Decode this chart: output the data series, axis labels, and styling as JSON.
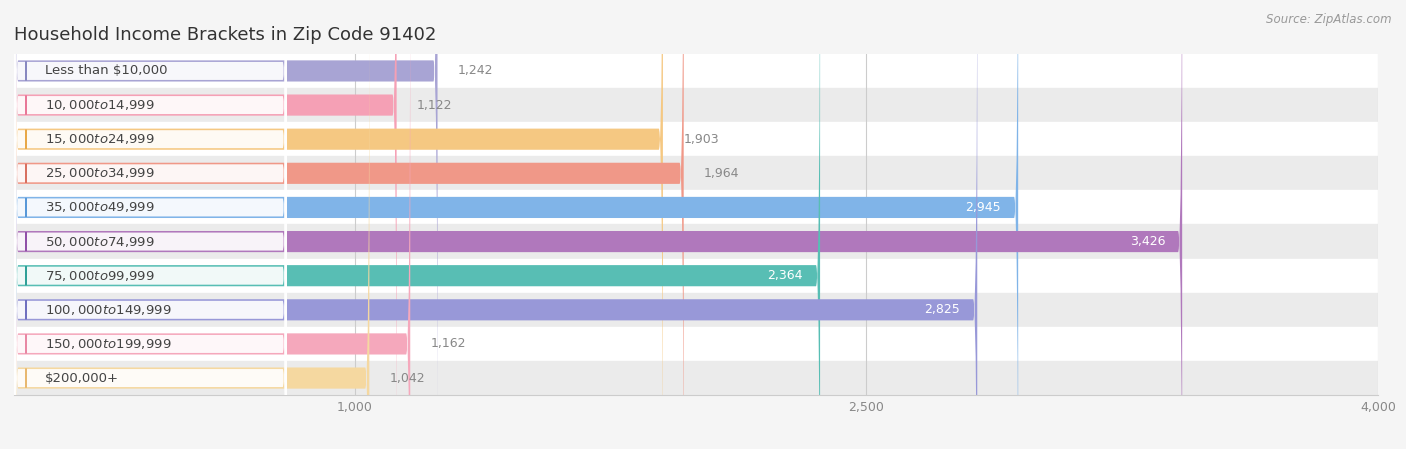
{
  "title": "Household Income Brackets in Zip Code 91402",
  "source": "Source: ZipAtlas.com",
  "categories": [
    "Less than $10,000",
    "$10,000 to $14,999",
    "$15,000 to $24,999",
    "$25,000 to $34,999",
    "$35,000 to $49,999",
    "$50,000 to $74,999",
    "$75,000 to $99,999",
    "$100,000 to $149,999",
    "$150,000 to $199,999",
    "$200,000+"
  ],
  "values": [
    1242,
    1122,
    1903,
    1964,
    2945,
    3426,
    2364,
    2825,
    1162,
    1042
  ],
  "bar_colors": [
    "#a8a4d4",
    "#f5a0b5",
    "#f5c882",
    "#f09888",
    "#80b4e8",
    "#b078bc",
    "#58beb4",
    "#9898d8",
    "#f5a8bc",
    "#f5d8a0"
  ],
  "dot_colors": [
    "#8888c0",
    "#e87898",
    "#e8a848",
    "#d87060",
    "#5898d8",
    "#9050a8",
    "#30a098",
    "#7070c0",
    "#e888a4",
    "#e8b870"
  ],
  "background_color": "#f5f5f5",
  "xlim": [
    0,
    4000
  ],
  "xticks": [
    1000,
    2500,
    4000
  ],
  "value_threshold": 2100,
  "title_fontsize": 13,
  "label_fontsize": 9.5,
  "value_fontsize": 9
}
